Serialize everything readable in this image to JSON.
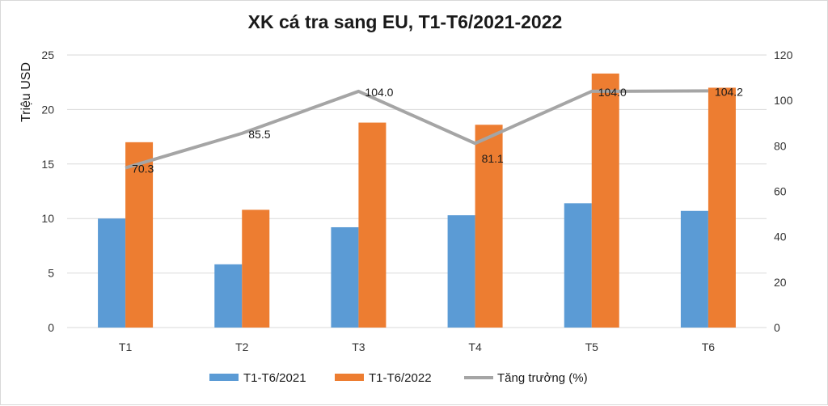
{
  "chart_data": {
    "type": "bar",
    "title": "XK cá tra sang EU,  T1-T6/2021-2022",
    "ylabel": "Triệu USD",
    "categories": [
      "T1",
      "T2",
      "T3",
      "T4",
      "T5",
      "T6"
    ],
    "series": [
      {
        "name": "T1-T6/2021",
        "type": "bar",
        "axis": "left",
        "color": "#5B9BD5",
        "values": [
          10.0,
          5.8,
          9.2,
          10.3,
          11.4,
          10.7
        ]
      },
      {
        "name": "T1-T6/2022",
        "type": "bar",
        "axis": "left",
        "color": "#ED7D31",
        "values": [
          17.0,
          10.8,
          18.8,
          18.6,
          23.3,
          22.0
        ]
      },
      {
        "name": "Tăng trưởng (%)",
        "type": "line",
        "axis": "right",
        "color": "#A5A5A5",
        "values": [
          70.3,
          85.5,
          104.0,
          81.1,
          104.0,
          104.2
        ],
        "labels": [
          "70.3",
          "85.5",
          "104.0",
          "81.1",
          "104.0",
          "104.2"
        ]
      }
    ],
    "y_left": {
      "ylim": [
        0,
        25
      ],
      "ticks": [
        "0",
        "5",
        "10",
        "15",
        "20",
        "25"
      ]
    },
    "y_right": {
      "ylim": [
        0,
        120
      ],
      "ticks": [
        "0",
        "20",
        "40",
        "60",
        "80",
        "100",
        "120"
      ]
    },
    "grid": true,
    "legend": "bottom"
  }
}
